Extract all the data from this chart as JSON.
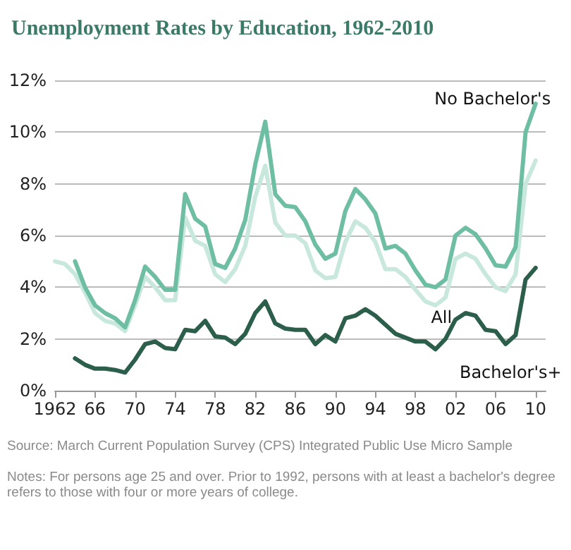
{
  "chart_data": {
    "type": "line",
    "title": "Unemployment Rates by Education, 1962-2010",
    "x": [
      1962,
      1963,
      1964,
      1965,
      1966,
      1967,
      1968,
      1969,
      1970,
      1971,
      1972,
      1973,
      1974,
      1975,
      1976,
      1977,
      1978,
      1979,
      1980,
      1981,
      1982,
      1983,
      1984,
      1985,
      1986,
      1987,
      1988,
      1989,
      1990,
      1991,
      1992,
      1993,
      1994,
      1995,
      1996,
      1997,
      1998,
      1999,
      2000,
      2001,
      2002,
      2003,
      2004,
      2005,
      2006,
      2007,
      2008,
      2009,
      2010
    ],
    "series": [
      {
        "name": "All",
        "color": "#c8e8dd",
        "values": [
          5.0,
          4.9,
          4.5,
          3.8,
          3.0,
          2.7,
          2.6,
          2.3,
          3.3,
          4.4,
          4.0,
          3.5,
          3.5,
          6.7,
          5.8,
          5.6,
          4.5,
          4.2,
          4.7,
          5.6,
          7.5,
          8.7,
          6.5,
          6.0,
          6.0,
          5.7,
          4.65,
          4.35,
          4.4,
          5.75,
          6.55,
          6.3,
          5.75,
          4.7,
          4.7,
          4.4,
          3.9,
          3.45,
          3.3,
          3.6,
          5.1,
          5.3,
          5.1,
          4.5,
          4.0,
          3.85,
          4.5,
          8.0,
          8.9
        ]
      },
      {
        "name": "No Bachelor's",
        "color": "#6dbea3",
        "values": [
          null,
          null,
          5.0,
          4.0,
          3.3,
          3.0,
          2.8,
          2.45,
          3.5,
          4.8,
          4.4,
          3.9,
          3.9,
          7.6,
          6.65,
          6.35,
          4.9,
          4.75,
          5.5,
          6.6,
          8.75,
          10.4,
          7.6,
          7.15,
          7.1,
          6.55,
          5.65,
          5.1,
          5.3,
          6.95,
          7.8,
          7.4,
          6.85,
          5.5,
          5.6,
          5.3,
          4.65,
          4.1,
          4.0,
          4.3,
          6.0,
          6.3,
          6.05,
          5.5,
          4.85,
          4.8,
          5.55,
          10.0,
          11.1
        ]
      },
      {
        "name": "Bachelor's+",
        "color": "#2b5e4b",
        "values": [
          null,
          null,
          1.25,
          1.0,
          0.85,
          0.85,
          0.8,
          0.7,
          1.2,
          1.8,
          1.9,
          1.65,
          1.6,
          2.35,
          2.3,
          2.7,
          2.1,
          2.05,
          1.8,
          2.2,
          3.0,
          3.45,
          2.6,
          2.4,
          2.35,
          2.35,
          1.8,
          2.15,
          1.9,
          2.8,
          2.9,
          3.15,
          2.9,
          2.55,
          2.2,
          2.05,
          1.9,
          1.9,
          1.6,
          2.0,
          2.75,
          3.0,
          2.9,
          2.35,
          2.3,
          1.8,
          2.15,
          4.3,
          4.75
        ]
      }
    ],
    "xlim": [
      1962,
      2011
    ],
    "xticks": [
      1962,
      {
        "value": 1966,
        "label": "66"
      },
      {
        "value": 1970,
        "label": "70"
      },
      {
        "value": 1974,
        "label": "74"
      },
      {
        "value": 1978,
        "label": "78"
      },
      {
        "value": 1982,
        "label": "82"
      },
      {
        "value": 1986,
        "label": "86"
      },
      {
        "value": 1990,
        "label": "90"
      },
      {
        "value": 1994,
        "label": "94"
      },
      {
        "value": 1998,
        "label": "98"
      },
      {
        "value": 2002,
        "label": "02"
      },
      {
        "value": 2006,
        "label": "06"
      },
      {
        "value": 2010,
        "label": "10"
      }
    ],
    "ylim": [
      0,
      12
    ],
    "yticks": [
      {
        "value": 0,
        "label": "0%"
      },
      {
        "value": 2,
        "label": "2%"
      },
      {
        "value": 4,
        "label": "4%"
      },
      {
        "value": 6,
        "label": "6%"
      },
      {
        "value": 8,
        "label": "8%"
      },
      {
        "value": 10,
        "label": "10%"
      },
      {
        "value": 12,
        "label": "12%"
      }
    ],
    "grid": "y",
    "legend": false,
    "marker": "none",
    "line_style": "solid",
    "annotations": [
      "Source: March Current Population Survey (CPS) Integrated Public Use Micro Sample",
      "Notes: For persons age 25 and over. Prior to 1992, persons with at least a bachelor's degree refers to those with four or more years of college."
    ]
  }
}
